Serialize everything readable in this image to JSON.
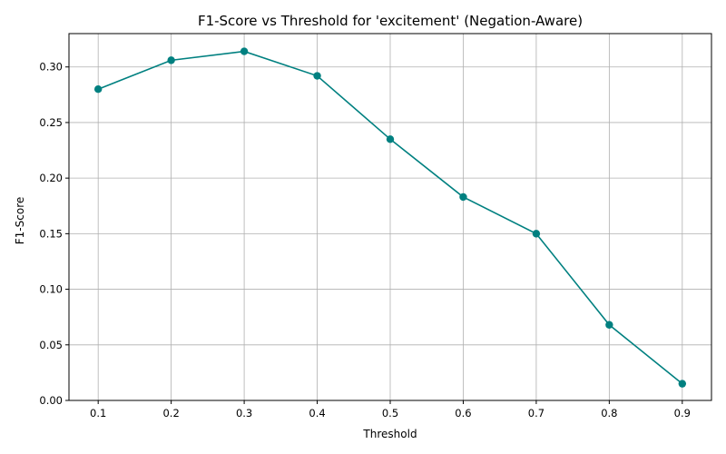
{
  "chart_data": {
    "type": "line",
    "title": "F1-Score vs Threshold for 'excitement' (Negation-Aware)",
    "xlabel": "Threshold",
    "ylabel": "F1-Score",
    "x": [
      0.1,
      0.2,
      0.3,
      0.4,
      0.5,
      0.6,
      0.7,
      0.8,
      0.9
    ],
    "series": [
      {
        "values": [
          0.28,
          0.306,
          0.314,
          0.292,
          0.235,
          0.183,
          0.15,
          0.068,
          0.015
        ],
        "color": "#008080"
      }
    ],
    "xticks": [
      "0.1",
      "0.2",
      "0.3",
      "0.4",
      "0.5",
      "0.6",
      "0.7",
      "0.8",
      "0.9"
    ],
    "yticks": [
      "0.00",
      "0.05",
      "0.10",
      "0.15",
      "0.20",
      "0.25",
      "0.30"
    ],
    "xlim": [
      0.06,
      0.94
    ],
    "ylim": [
      0.0,
      0.33
    ],
    "grid": true,
    "marker": "circle"
  }
}
